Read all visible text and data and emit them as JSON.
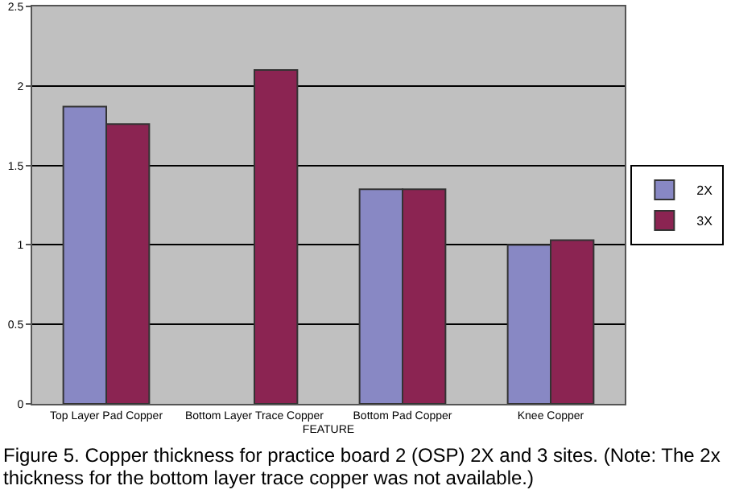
{
  "chart_data": {
    "type": "bar",
    "xlabel": "FEATURE",
    "categories": [
      "Top Layer Pad Copper",
      "Bottom Layer Trace Copper",
      "Bottom Pad Copper",
      "Knee Copper"
    ],
    "series": [
      {
        "name": "2X",
        "color": "#8888c4",
        "values": [
          1.87,
          null,
          1.35,
          1.0
        ]
      },
      {
        "name": "3X",
        "color": "#8b2452",
        "values": [
          1.76,
          2.1,
          1.35,
          1.03
        ]
      }
    ],
    "ylim": [
      0,
      2.5
    ],
    "yticks": [
      0,
      0.5,
      1,
      1.5,
      2,
      2.5
    ],
    "grid": "y",
    "legend": "right",
    "annotations": [
      "Figure 5. Copper thickness for practice board 2 (OSP) 2X and 3 sites. (Note: The 2x thickness for the bottom layer trace copper was not available.)"
    ]
  }
}
